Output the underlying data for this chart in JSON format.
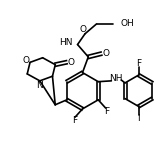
{
  "bg_color": "#ffffff",
  "line_color": "#000000",
  "lw": 1.2,
  "fs": 6.5,
  "fig_size": [
    1.65,
    1.65
  ],
  "dpi": 100,
  "xlim": [
    0,
    10
  ],
  "ylim": [
    0,
    10
  ]
}
